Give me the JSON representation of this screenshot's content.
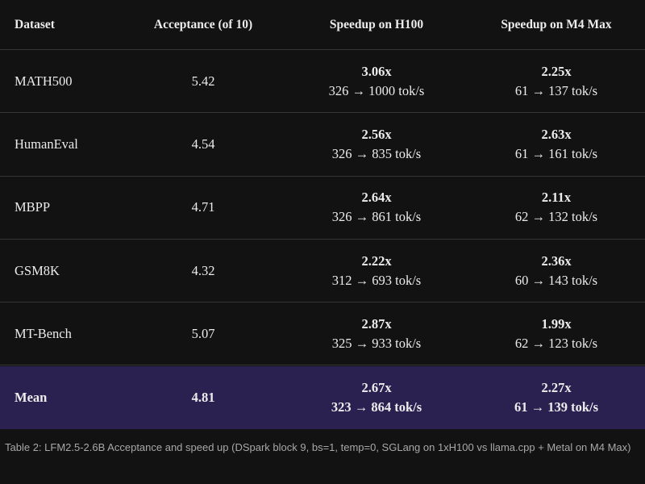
{
  "table": {
    "header": [
      "Dataset",
      "Acceptance (of 10)",
      "Speedup on H100",
      "Speedup on M4 Max"
    ],
    "rows": [
      [
        "MATH500",
        "5.42",
        "3.06x",
        "326 → 1000 tok/s",
        "2.25x",
        "61 → 137 tok/s"
      ],
      [
        "HumanEval",
        "4.54",
        "2.56x",
        "326 → 835 tok/s",
        "2.63x",
        "61 → 161 tok/s"
      ],
      [
        "MBPP",
        "4.71",
        "2.64x",
        "326 → 861 tok/s",
        "2.11x",
        "62 → 132 tok/s"
      ],
      [
        "GSM8K",
        "4.32",
        "2.22x",
        "312 → 693 tok/s",
        "2.36x",
        "60 → 143 tok/s"
      ],
      [
        "MT-Bench",
        "5.07",
        "2.87x",
        "325 → 933 tok/s",
        "1.99x",
        "62 → 123 tok/s"
      ],
      [
        "Mean",
        "4.81",
        "2.67x",
        "323 → 864 tok/s",
        "2.27x",
        "61 → 139 tok/s"
      ]
    ],
    "caption": "Table 2: LFM2.5-2.6B Acceptance and speed up (DSpark block 9, bs=1, temp=0, SGLang on 1xH100 vs llama.cpp + Metal on M4 Max)"
  }
}
